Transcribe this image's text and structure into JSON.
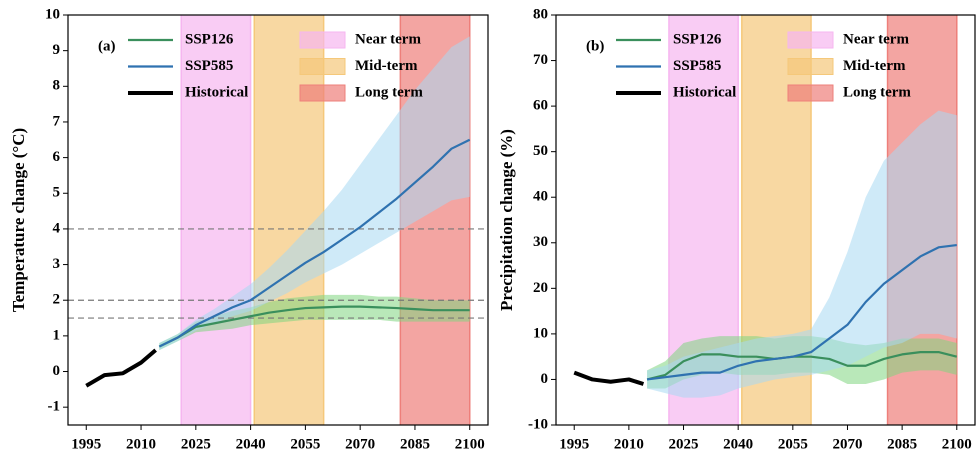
{
  "chart_data": [
    {
      "type": "line",
      "annotation": "(a)",
      "y_label": "Temperature change (°C)",
      "xlim": [
        1990,
        2105
      ],
      "ylim": [
        -1.5,
        10
      ],
      "xticks": [
        1995,
        2010,
        2025,
        2040,
        2055,
        2070,
        2085,
        2100
      ],
      "yticks": [
        -1,
        0,
        1,
        2,
        3,
        4,
        5,
        6,
        7,
        8,
        9,
        10
      ],
      "hlines": [
        1.5,
        2,
        4
      ],
      "periods": [
        {
          "name": "Near term",
          "color": "#f6b6f0",
          "range": [
            2021,
            2040
          ]
        },
        {
          "name": "Mid-term",
          "color": "#f5c87a",
          "range": [
            2041,
            2060
          ]
        },
        {
          "name": "Long term",
          "color": "#ee7f7a",
          "range": [
            2081,
            2100
          ]
        }
      ],
      "series": [
        {
          "name": "SSP126",
          "color": "#3a8f5c",
          "band_color": "#7fd67f",
          "x": [
            2015,
            2020,
            2025,
            2030,
            2035,
            2040,
            2045,
            2050,
            2055,
            2060,
            2065,
            2070,
            2075,
            2080,
            2085,
            2090,
            2095,
            2100
          ],
          "values": [
            0.7,
            0.95,
            1.25,
            1.35,
            1.45,
            1.55,
            1.65,
            1.72,
            1.78,
            1.8,
            1.82,
            1.82,
            1.8,
            1.78,
            1.75,
            1.72,
            1.72,
            1.72
          ],
          "upper": [
            0.8,
            1.05,
            1.4,
            1.55,
            1.7,
            1.8,
            1.95,
            2.05,
            2.1,
            2.15,
            2.15,
            2.15,
            2.1,
            2.1,
            2.05,
            2.0,
            2.0,
            2.0
          ],
          "lower": [
            0.6,
            0.85,
            1.1,
            1.15,
            1.2,
            1.3,
            1.35,
            1.4,
            1.45,
            1.45,
            1.45,
            1.45,
            1.45,
            1.4,
            1.4,
            1.4,
            1.4,
            1.4
          ]
        },
        {
          "name": "SSP585",
          "color": "#2f72b0",
          "band_color": "#a8d8f2",
          "x": [
            2015,
            2020,
            2025,
            2030,
            2035,
            2040,
            2045,
            2050,
            2055,
            2060,
            2065,
            2070,
            2075,
            2080,
            2085,
            2090,
            2095,
            2100
          ],
          "values": [
            0.7,
            0.95,
            1.3,
            1.55,
            1.8,
            2.0,
            2.35,
            2.7,
            3.05,
            3.35,
            3.7,
            4.05,
            4.45,
            4.85,
            5.3,
            5.75,
            6.25,
            6.5
          ],
          "upper": [
            0.8,
            1.05,
            1.45,
            1.75,
            2.1,
            2.45,
            2.9,
            3.4,
            3.95,
            4.5,
            5.1,
            5.8,
            6.5,
            7.2,
            7.9,
            8.5,
            9.1,
            9.4
          ],
          "lower": [
            0.6,
            0.85,
            1.15,
            1.35,
            1.55,
            1.7,
            1.95,
            2.2,
            2.5,
            2.75,
            3.0,
            3.3,
            3.6,
            3.9,
            4.2,
            4.5,
            4.8,
            4.9
          ]
        },
        {
          "name": "Historical",
          "color": "#000000",
          "x": [
            1995,
            2000,
            2005,
            2010,
            2014
          ],
          "values": [
            -0.4,
            -0.1,
            -0.05,
            0.25,
            0.6
          ]
        }
      ]
    },
    {
      "type": "line",
      "annotation": "(b)",
      "y_label": "Precipitation change (%)",
      "xlim": [
        1990,
        2105
      ],
      "ylim": [
        -10,
        80
      ],
      "xticks": [
        1995,
        2010,
        2025,
        2040,
        2055,
        2070,
        2085,
        2100
      ],
      "yticks": [
        -10,
        0,
        10,
        20,
        30,
        40,
        50,
        60,
        70,
        80
      ],
      "periods": [
        {
          "name": "Near term",
          "color": "#f6b6f0",
          "range": [
            2021,
            2040
          ]
        },
        {
          "name": "Mid-term",
          "color": "#f5c87a",
          "range": [
            2041,
            2060
          ]
        },
        {
          "name": "Long term",
          "color": "#ee7f7a",
          "range": [
            2081,
            2100
          ]
        }
      ],
      "series": [
        {
          "name": "SSP126",
          "color": "#3a8f5c",
          "band_color": "#7fd67f",
          "x": [
            2015,
            2020,
            2025,
            2030,
            2035,
            2040,
            2045,
            2050,
            2055,
            2060,
            2065,
            2070,
            2075,
            2080,
            2085,
            2090,
            2095,
            2100
          ],
          "values": [
            0,
            1,
            4,
            5.5,
            5.5,
            5,
            5,
            4.5,
            5,
            5,
            4.5,
            3,
            3,
            4.5,
            5.5,
            6,
            6,
            5
          ],
          "upper": [
            2,
            4,
            8,
            9,
            9.5,
            9.5,
            9.5,
            9,
            9.5,
            9.5,
            9,
            8,
            7.5,
            8,
            9,
            9,
            9,
            8
          ],
          "lower": [
            -2,
            -2,
            0,
            1,
            1.5,
            1,
            1,
            1,
            1.5,
            1.5,
            1,
            -1,
            -1,
            0,
            1.5,
            2,
            2,
            1
          ]
        },
        {
          "name": "SSP585",
          "color": "#2f72b0",
          "band_color": "#a8d8f2",
          "x": [
            2015,
            2020,
            2025,
            2030,
            2035,
            2040,
            2045,
            2050,
            2055,
            2060,
            2065,
            2070,
            2075,
            2080,
            2085,
            2090,
            2095,
            2100
          ],
          "values": [
            0,
            0.5,
            1,
            1.5,
            1.5,
            3,
            4,
            4.5,
            5,
            6,
            9,
            12,
            17,
            21,
            24,
            27,
            29,
            29.5
          ],
          "upper": [
            2,
            3,
            5,
            6,
            7,
            8,
            9,
            9.5,
            10,
            11,
            18,
            28,
            40,
            48,
            52,
            56,
            59,
            58
          ],
          "lower": [
            -2,
            -3,
            -4,
            -4,
            -3.5,
            -2,
            -1,
            0,
            0.5,
            1,
            2,
            3,
            5,
            7,
            8,
            10,
            10,
            9
          ]
        },
        {
          "name": "Historical",
          "color": "#000000",
          "x": [
            1995,
            2000,
            2005,
            2010,
            2014
          ],
          "values": [
            1.5,
            0,
            -0.5,
            0,
            -1
          ]
        }
      ]
    }
  ]
}
